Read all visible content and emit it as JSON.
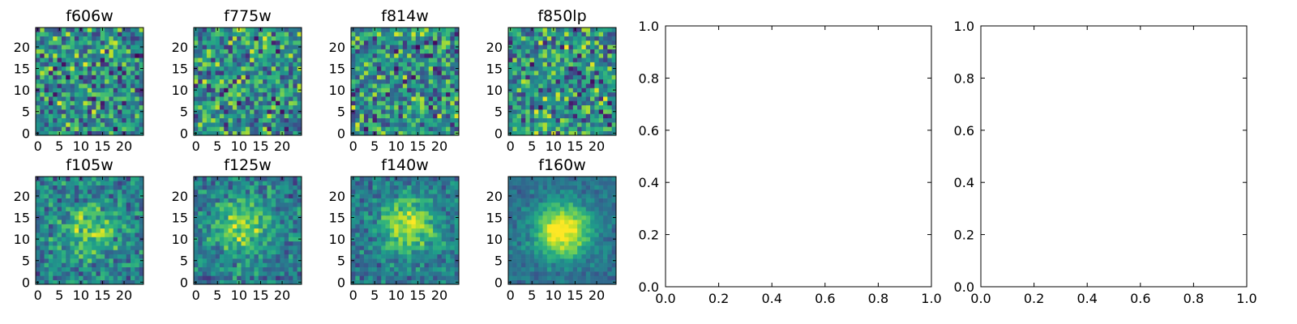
{
  "chart_data": [
    {
      "type": "heatmap",
      "title": "f606w",
      "x_ticks": [
        "0",
        "5",
        "10",
        "15",
        "20"
      ],
      "y_ticks": [
        "0",
        "5",
        "10",
        "15",
        "20"
      ],
      "xlim": [
        -0.5,
        24.5
      ],
      "ylim": [
        -0.5,
        24.5
      ],
      "grid_size": 25,
      "colormap": "viridis",
      "values_note": "noise",
      "seed": 606,
      "blob": null
    },
    {
      "type": "heatmap",
      "title": "f775w",
      "x_ticks": [
        "0",
        "5",
        "10",
        "15",
        "20"
      ],
      "y_ticks": [
        "0",
        "5",
        "10",
        "15",
        "20"
      ],
      "xlim": [
        -0.5,
        24.5
      ],
      "ylim": [
        -0.5,
        24.5
      ],
      "grid_size": 25,
      "colormap": "viridis",
      "seed": 775,
      "blob": null
    },
    {
      "type": "heatmap",
      "title": "f814w",
      "x_ticks": [
        "0",
        "5",
        "10",
        "15",
        "20"
      ],
      "y_ticks": [
        "0",
        "5",
        "10",
        "15",
        "20"
      ],
      "xlim": [
        -0.5,
        24.5
      ],
      "ylim": [
        -0.5,
        24.5
      ],
      "grid_size": 25,
      "colormap": "viridis",
      "seed": 814,
      "blob": null
    },
    {
      "type": "heatmap",
      "title": "f850lp",
      "x_ticks": [
        "0",
        "5",
        "10",
        "15",
        "20"
      ],
      "y_ticks": [
        "0",
        "5",
        "10",
        "15",
        "20"
      ],
      "xlim": [
        -0.5,
        24.5
      ],
      "ylim": [
        -0.5,
        24.5
      ],
      "grid_size": 25,
      "colormap": "viridis",
      "seed": 850,
      "blob": null
    },
    {
      "type": "heatmap",
      "title": "f105w",
      "x_ticks": [
        "0",
        "5",
        "10",
        "15",
        "20"
      ],
      "y_ticks": [
        "0",
        "5",
        "10",
        "15",
        "20"
      ],
      "xlim": [
        -0.5,
        24.5
      ],
      "ylim": [
        -0.5,
        24.5
      ],
      "grid_size": 25,
      "colormap": "viridis",
      "seed": 105,
      "blob": {
        "x": 12,
        "y": 12,
        "strength": 0.35
      }
    },
    {
      "type": "heatmap",
      "title": "f125w",
      "x_ticks": [
        "0",
        "5",
        "10",
        "15",
        "20"
      ],
      "y_ticks": [
        "0",
        "5",
        "10",
        "15",
        "20"
      ],
      "xlim": [
        -0.5,
        24.5
      ],
      "ylim": [
        -0.5,
        24.5
      ],
      "grid_size": 25,
      "colormap": "viridis",
      "seed": 125,
      "blob": {
        "x": 11,
        "y": 13,
        "strength": 0.4
      }
    },
    {
      "type": "heatmap",
      "title": "f140w",
      "x_ticks": [
        "0",
        "5",
        "10",
        "15",
        "20"
      ],
      "y_ticks": [
        "0",
        "5",
        "10",
        "15",
        "20"
      ],
      "xlim": [
        -0.5,
        24.5
      ],
      "ylim": [
        -0.5,
        24.5
      ],
      "grid_size": 25,
      "colormap": "viridis",
      "seed": 140,
      "blob": {
        "x": 13,
        "y": 13,
        "strength": 0.5
      }
    },
    {
      "type": "heatmap",
      "title": "f160w",
      "x_ticks": [
        "0",
        "5",
        "10",
        "15",
        "20"
      ],
      "y_ticks": [
        "0",
        "5",
        "10",
        "15",
        "20"
      ],
      "xlim": [
        -0.5,
        24.5
      ],
      "ylim": [
        -0.5,
        24.5
      ],
      "grid_size": 25,
      "colormap": "viridis",
      "seed": 160,
      "blob": {
        "x": 12,
        "y": 12,
        "strength": 0.7
      }
    },
    {
      "type": "scatter",
      "title": "",
      "series": [],
      "xlim": [
        0.0,
        1.0
      ],
      "ylim": [
        0.0,
        1.0
      ],
      "x_ticks": [
        "0.0",
        "0.2",
        "0.4",
        "0.6",
        "0.8",
        "1.0"
      ],
      "y_ticks": [
        "0.0",
        "0.2",
        "0.4",
        "0.6",
        "0.8",
        "1.0"
      ]
    },
    {
      "type": "scatter",
      "title": "",
      "series": [],
      "xlim": [
        0.0,
        1.0
      ],
      "ylim": [
        0.0,
        1.0
      ],
      "x_ticks": [
        "0.0",
        "0.2",
        "0.4",
        "0.6",
        "0.8",
        "1.0"
      ],
      "y_ticks": [
        "0.0",
        "0.2",
        "0.4",
        "0.6",
        "0.8",
        "1.0"
      ]
    }
  ]
}
